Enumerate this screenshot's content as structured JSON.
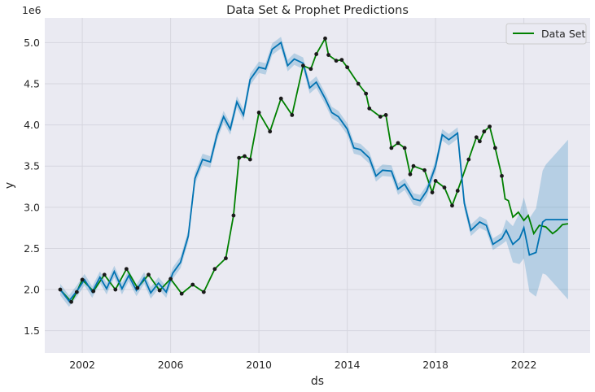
{
  "chart_data": {
    "type": "line",
    "title": "Data Set & Prophet Predictions",
    "xlabel": "ds",
    "ylabel": "y",
    "y_offset_label": "1e6",
    "xlim": [
      2000.3,
      2025.0
    ],
    "ylim": [
      1.23,
      5.3
    ],
    "x_ticks": [
      2002,
      2006,
      2010,
      2014,
      2018,
      2022
    ],
    "x_tick_labels": [
      "2002",
      "2006",
      "2010",
      "2014",
      "2018",
      "2022"
    ],
    "y_ticks": [
      1.5,
      2.0,
      2.5,
      3.0,
      3.5,
      4.0,
      4.5,
      5.0
    ],
    "y_tick_labels": [
      "1.5",
      "2.0",
      "2.5",
      "3.0",
      "3.5",
      "4.0",
      "4.5",
      "5.0"
    ],
    "grid": true,
    "legend": {
      "position": "top-right",
      "entries": [
        "Data Set"
      ]
    },
    "colors": {
      "data_set": "#008000",
      "forecast": "#0072B2",
      "interval": "#0072B2",
      "observed": "#1a1a1a",
      "plot_bg": "#eaeaf2",
      "grid": "#ffffff"
    },
    "series": [
      {
        "name": "Data Set",
        "x": [
          2001.0,
          2001.5,
          2001.75,
          2002.0,
          2002.5,
          2003.0,
          2003.5,
          2004.0,
          2004.5,
          2005.0,
          2005.5,
          2006.0,
          2006.5,
          2007.0,
          2007.5,
          2008.0,
          2008.5,
          2008.85,
          2009.1,
          2009.35,
          2009.6,
          2010.0,
          2010.5,
          2011.0,
          2011.5,
          2012.0,
          2012.35,
          2012.6,
          2013.0,
          2013.15,
          2013.5,
          2013.75,
          2014.0,
          2014.5,
          2014.85,
          2015.0,
          2015.5,
          2015.75,
          2016.0,
          2016.3,
          2016.6,
          2016.85,
          2017.0,
          2017.5,
          2017.85,
          2018.0,
          2018.4,
          2018.75,
          2019.0,
          2019.5,
          2019.85,
          2020.0,
          2020.2,
          2020.45,
          2020.7,
          2021.0,
          2021.15,
          2021.3,
          2021.5,
          2021.75,
          2022.0,
          2022.2,
          2022.45,
          2022.7,
          2023.0,
          2023.3,
          2023.5,
          2023.75,
          2024.0
        ],
        "y": [
          2.0,
          1.85,
          1.97,
          2.12,
          1.98,
          2.18,
          2.0,
          2.25,
          2.02,
          2.18,
          1.99,
          2.13,
          1.95,
          2.06,
          1.97,
          2.25,
          2.38,
          2.9,
          3.6,
          3.62,
          3.58,
          4.15,
          3.92,
          4.32,
          4.12,
          4.72,
          4.68,
          4.86,
          5.05,
          4.85,
          4.78,
          4.79,
          4.7,
          4.5,
          4.38,
          4.2,
          4.1,
          4.12,
          3.72,
          3.78,
          3.72,
          3.4,
          3.5,
          3.45,
          3.18,
          3.32,
          3.24,
          3.02,
          3.2,
          3.58,
          3.85,
          3.8,
          3.92,
          3.98,
          3.72,
          3.38,
          3.1,
          3.08,
          2.88,
          2.94,
          2.84,
          2.9,
          2.68,
          2.78,
          2.76,
          2.68,
          2.72,
          2.79,
          2.8
        ]
      },
      {
        "name": "",
        "x": [
          2001.0,
          2001.4,
          2001.75,
          2002.1,
          2002.45,
          2002.8,
          2003.1,
          2003.45,
          2003.8,
          2004.1,
          2004.45,
          2004.8,
          2005.1,
          2005.45,
          2005.8,
          2006.1,
          2006.45,
          2006.8,
          2007.1,
          2007.45,
          2007.8,
          2008.1,
          2008.4,
          2008.7,
          2009.0,
          2009.3,
          2009.6,
          2010.0,
          2010.3,
          2010.6,
          2011.0,
          2011.3,
          2011.6,
          2012.0,
          2012.3,
          2012.6,
          2013.0,
          2013.3,
          2013.6,
          2014.0,
          2014.3,
          2014.6,
          2015.0,
          2015.3,
          2015.6,
          2016.0,
          2016.3,
          2016.6,
          2017.0,
          2017.3,
          2017.6,
          2018.0,
          2018.3,
          2018.6,
          2019.0,
          2019.3,
          2019.6,
          2020.0,
          2020.3,
          2020.6,
          2021.0,
          2021.2,
          2021.5,
          2021.8,
          2022.0,
          2022.25,
          2022.55,
          2022.85,
          2023.0,
          2023.3,
          2023.55,
          2023.85,
          2024.0
        ],
        "y": [
          2.0,
          1.86,
          1.98,
          2.12,
          1.97,
          2.15,
          2.01,
          2.22,
          2.01,
          2.17,
          1.99,
          2.14,
          1.96,
          2.08,
          1.97,
          2.2,
          2.33,
          2.65,
          3.35,
          3.58,
          3.55,
          3.88,
          4.1,
          3.95,
          4.28,
          4.12,
          4.55,
          4.7,
          4.68,
          4.92,
          5.0,
          4.72,
          4.8,
          4.75,
          4.45,
          4.52,
          4.32,
          4.15,
          4.1,
          3.95,
          3.72,
          3.7,
          3.6,
          3.38,
          3.45,
          3.44,
          3.22,
          3.28,
          3.1,
          3.08,
          3.2,
          3.5,
          3.88,
          3.82,
          3.9,
          3.05,
          2.72,
          2.82,
          2.78,
          2.55,
          2.62,
          2.72,
          2.55,
          2.62,
          2.75,
          2.42,
          2.45,
          2.82,
          2.85,
          2.85,
          2.85,
          2.85,
          2.85
        ]
      }
    ]
  }
}
